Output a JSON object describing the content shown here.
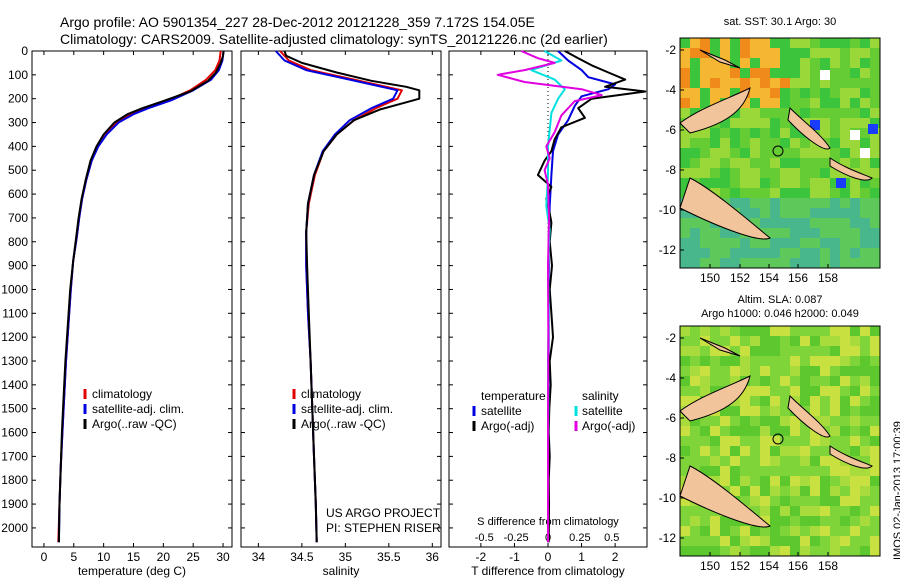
{
  "header": {
    "line1": "Argo profile: AO 5901354_227 28-Dec-2012 20121228_359 7.172S 154.05E",
    "line2": "Climatology: CARS2009. Satellite-adjusted climatology: synTS_20121226.nc (2d earlier)"
  },
  "credit": "IMOS 02-Jan-2013 17:00:39",
  "colors": {
    "climatology": "#e00000",
    "satellite": "#0000e0",
    "argo": "#000000",
    "salinity_sat": "#00e0e0",
    "salinity_argo": "#e000e0"
  },
  "chart_data": [
    {
      "type": "line",
      "xlabel": "temperature (deg C)",
      "ylim": [
        2080,
        0
      ],
      "xlim": [
        -2,
        31.5
      ],
      "xticks": [
        0,
        5,
        10,
        15,
        20,
        25,
        30
      ],
      "yticks": [
        0,
        100,
        200,
        300,
        400,
        500,
        600,
        700,
        800,
        900,
        1000,
        1100,
        1200,
        1300,
        1400,
        1500,
        1600,
        1700,
        1800,
        1900,
        2000
      ],
      "legend": [
        "climatology",
        "satellite-adj. clim.",
        "Argo(..raw -QC)"
      ],
      "series": [
        {
          "name": "climatology",
          "color": "#e00000",
          "points": [
            [
              29.6,
              0
            ],
            [
              29.4,
              40
            ],
            [
              28.7,
              80
            ],
            [
              27.2,
              120
            ],
            [
              24.5,
              165
            ],
            [
              21,
              205
            ],
            [
              17,
              240
            ],
            [
              14.5,
              265
            ],
            [
              12.2,
              300
            ],
            [
              10.4,
              350
            ],
            [
              9,
              400
            ],
            [
              8,
              460
            ],
            [
              7.1,
              540
            ],
            [
              6.4,
              620
            ],
            [
              5.9,
              700
            ],
            [
              5.5,
              780
            ],
            [
              4.9,
              880
            ],
            [
              4.5,
              1000
            ],
            [
              4.1,
              1150
            ],
            [
              3.7,
              1300
            ],
            [
              3.4,
              1450
            ],
            [
              3.1,
              1600
            ],
            [
              2.8,
              1750
            ],
            [
              2.6,
              1900
            ],
            [
              2.4,
              2060
            ]
          ]
        },
        {
          "name": "satellite-adj. clim.",
          "color": "#0000e0",
          "points": [
            [
              30.1,
              0
            ],
            [
              29.9,
              40
            ],
            [
              29.3,
              80
            ],
            [
              28,
              120
            ],
            [
              25,
              165
            ],
            [
              21.5,
              205
            ],
            [
              17.5,
              240
            ],
            [
              15,
              265
            ],
            [
              12.5,
              300
            ],
            [
              10.5,
              350
            ],
            [
              9.1,
              400
            ],
            [
              8,
              460
            ],
            [
              7.1,
              540
            ],
            [
              6.4,
              620
            ],
            [
              5.9,
              700
            ],
            [
              5.5,
              780
            ],
            [
              4.9,
              880
            ],
            [
              4.5,
              1000
            ],
            [
              4.1,
              1150
            ],
            [
              3.7,
              1300
            ],
            [
              3.4,
              1450
            ],
            [
              3.1,
              1600
            ],
            [
              2.8,
              1750
            ],
            [
              2.6,
              1900
            ],
            [
              2.5,
              2060
            ]
          ]
        },
        {
          "name": "Argo(..raw -QC)",
          "color": "#000000",
          "points": [
            [
              30.1,
              0
            ],
            [
              30,
              20
            ],
            [
              29.6,
              50
            ],
            [
              28.8,
              90
            ],
            [
              27.5,
              125
            ],
            [
              24.5,
              170
            ],
            [
              20,
              210
            ],
            [
              16.5,
              240
            ],
            [
              14,
              265
            ],
            [
              11.8,
              300
            ],
            [
              10,
              350
            ],
            [
              8.8,
              400
            ],
            [
              7.8,
              460
            ],
            [
              7,
              540
            ],
            [
              6.3,
              620
            ],
            [
              5.8,
              700
            ],
            [
              5.4,
              780
            ],
            [
              4.9,
              880
            ],
            [
              4.4,
              1000
            ],
            [
              4,
              1150
            ],
            [
              3.6,
              1300
            ],
            [
              3.3,
              1450
            ],
            [
              3,
              1600
            ],
            [
              2.8,
              1750
            ],
            [
              2.6,
              1900
            ],
            [
              2.5,
              2060
            ]
          ]
        }
      ]
    },
    {
      "type": "line",
      "xlabel": "salinity",
      "ylim": [
        2080,
        0
      ],
      "xlim": [
        33.8,
        36.1
      ],
      "xticks": [
        34,
        34.5,
        35,
        35.5,
        36
      ],
      "legend": [
        "climatology",
        "satellite-adj. clim.",
        "Argo(..raw -QC)"
      ],
      "annotation": [
        "US ARGO PROJECT",
        "PI: STEPHEN RISER"
      ],
      "series": [
        {
          "name": "climatology",
          "color": "#e00000",
          "points": [
            [
              34.25,
              0
            ],
            [
              34.35,
              40
            ],
            [
              34.6,
              80
            ],
            [
              35.1,
              120
            ],
            [
              35.65,
              165
            ],
            [
              35.6,
              200
            ],
            [
              35.35,
              240
            ],
            [
              35.1,
              290
            ],
            [
              34.9,
              350
            ],
            [
              34.75,
              420
            ],
            [
              34.65,
              520
            ],
            [
              34.58,
              640
            ],
            [
              34.55,
              760
            ],
            [
              34.55,
              900
            ],
            [
              34.57,
              1100
            ],
            [
              34.6,
              1300
            ],
            [
              34.62,
              1500
            ],
            [
              34.64,
              1700
            ],
            [
              34.66,
              1900
            ],
            [
              34.67,
              2060
            ]
          ]
        },
        {
          "name": "satellite-adj. clim.",
          "color": "#0000e0",
          "points": [
            [
              34.2,
              0
            ],
            [
              34.3,
              40
            ],
            [
              34.55,
              80
            ],
            [
              35.05,
              120
            ],
            [
              35.6,
              165
            ],
            [
              35.55,
              200
            ],
            [
              35.3,
              240
            ],
            [
              35.05,
              290
            ],
            [
              34.88,
              350
            ],
            [
              34.74,
              420
            ],
            [
              34.64,
              520
            ],
            [
              34.57,
              640
            ],
            [
              34.55,
              760
            ],
            [
              34.55,
              900
            ],
            [
              34.57,
              1100
            ],
            [
              34.6,
              1300
            ],
            [
              34.62,
              1500
            ],
            [
              34.64,
              1700
            ],
            [
              34.66,
              1900
            ],
            [
              34.67,
              2060
            ]
          ]
        },
        {
          "name": "Argo(..raw -QC)",
          "color": "#000000",
          "points": [
            [
              34.3,
              0
            ],
            [
              34.32,
              20
            ],
            [
              34.5,
              50
            ],
            [
              34.9,
              90
            ],
            [
              35.3,
              125
            ],
            [
              35.7,
              150
            ],
            [
              35.85,
              165
            ],
            [
              35.85,
              200
            ],
            [
              35.7,
              215
            ],
            [
              35.4,
              245
            ],
            [
              35.1,
              290
            ],
            [
              34.9,
              350
            ],
            [
              34.75,
              420
            ],
            [
              34.64,
              520
            ],
            [
              34.57,
              640
            ],
            [
              34.55,
              760
            ],
            [
              34.56,
              900
            ],
            [
              34.58,
              1100
            ],
            [
              34.6,
              1300
            ],
            [
              34.62,
              1500
            ],
            [
              34.64,
              1700
            ],
            [
              34.66,
              1900
            ],
            [
              34.67,
              2060
            ]
          ]
        }
      ]
    },
    {
      "type": "line",
      "xlabel": "T difference from climatology",
      "top_label": "S difference from climatology",
      "ylim": [
        2080,
        0
      ],
      "xlim": [
        -2.95,
        2.95
      ],
      "xticks": [
        -2,
        -1,
        0,
        1,
        2
      ],
      "top_ticks": [
        "-0.5",
        "-0.25",
        "0",
        "0.25",
        "0.5"
      ],
      "legend_temperature": [
        "temperature",
        "satellite",
        "Argo(-adj)"
      ],
      "legend_salinity": [
        "salinity",
        "satellite",
        "Argo(-adj)"
      ],
      "series": [
        {
          "name": "T satellite",
          "color": "#0000e0",
          "points": [
            [
              0.3,
              0
            ],
            [
              0.6,
              40
            ],
            [
              1,
              80
            ],
            [
              1.2,
              110
            ],
            [
              2,
              140
            ],
            [
              1.8,
              160
            ],
            [
              1,
              190
            ],
            [
              0.8,
              230
            ],
            [
              0.6,
              290
            ],
            [
              0.3,
              350
            ],
            [
              0.15,
              420
            ],
            [
              0.1,
              520
            ],
            [
              0.05,
              650
            ],
            [
              0.02,
              800
            ],
            [
              0.02,
              1000
            ],
            [
              0.02,
              1200
            ],
            [
              0.01,
              1500
            ],
            [
              0.01,
              1800
            ],
            [
              0.01,
              2060
            ]
          ]
        },
        {
          "name": "T Argo(-adj)",
          "color": "#000000",
          "points": [
            [
              0.5,
              0
            ],
            [
              0.9,
              30
            ],
            [
              1.3,
              60
            ],
            [
              1.8,
              90
            ],
            [
              2.3,
              120
            ],
            [
              1.7,
              150
            ],
            [
              2.9,
              170
            ],
            [
              2.1,
              185
            ],
            [
              1.3,
              200
            ],
            [
              0.9,
              240
            ],
            [
              1.1,
              280
            ],
            [
              0.4,
              320
            ],
            [
              0.2,
              370
            ],
            [
              0.1,
              420
            ],
            [
              -0.1,
              460
            ],
            [
              -0.3,
              520
            ],
            [
              0.1,
              570
            ],
            [
              -0.05,
              620
            ],
            [
              0.05,
              680
            ],
            [
              0.1,
              720
            ],
            [
              0.05,
              800
            ],
            [
              0.12,
              900
            ],
            [
              0.05,
              1000
            ],
            [
              0.1,
              1100
            ],
            [
              0.15,
              1200
            ],
            [
              0.05,
              1300
            ],
            [
              0.08,
              1400
            ],
            [
              0.04,
              1500
            ],
            [
              0.02,
              1600
            ],
            [
              0.05,
              1700
            ],
            [
              0.02,
              1800
            ],
            [
              0.03,
              1900
            ],
            [
              0.02,
              2060
            ]
          ]
        },
        {
          "name": "S satellite",
          "color": "#00e0e0",
          "points": [
            [
              -0.1,
              0
            ],
            [
              0.4,
              40
            ],
            [
              -0.5,
              80
            ],
            [
              0.2,
              120
            ],
            [
              0.5,
              160
            ],
            [
              0.3,
              200
            ],
            [
              0.1,
              260
            ],
            [
              0.05,
              330
            ],
            [
              0,
              400
            ],
            [
              0,
              520
            ],
            [
              -0.05,
              650
            ],
            [
              0.05,
              750
            ],
            [
              0,
              900
            ],
            [
              0.02,
              1100
            ],
            [
              0,
              1300
            ],
            [
              0.01,
              1500
            ],
            [
              0,
              1700
            ],
            [
              0,
              1900
            ],
            [
              0,
              2060
            ]
          ]
        },
        {
          "name": "S Argo(-adj)",
          "color": "#e000e0",
          "points": [
            [
              -0.8,
              0
            ],
            [
              -0.3,
              30
            ],
            [
              0.2,
              50
            ],
            [
              -0.7,
              80
            ],
            [
              -1.5,
              100
            ],
            [
              -0.7,
              130
            ],
            [
              1,
              160
            ],
            [
              1.6,
              185
            ],
            [
              0.8,
              210
            ],
            [
              0.4,
              270
            ],
            [
              0.2,
              340
            ],
            [
              -0.05,
              400
            ],
            [
              0.05,
              450
            ],
            [
              -0.1,
              500
            ],
            [
              0,
              560
            ],
            [
              0.03,
              700
            ],
            [
              0,
              900
            ],
            [
              0.01,
              1200
            ],
            [
              0,
              1500
            ],
            [
              0,
              1800
            ],
            [
              0,
              2060
            ]
          ]
        }
      ]
    }
  ],
  "maps": [
    {
      "title": "sat. SST: 30.1  Argo: 30",
      "xticks": [
        "150",
        "152",
        "154",
        "156",
        "158"
      ],
      "yticks": [
        "-2",
        "-4",
        "-6",
        "-8",
        "-10",
        "-12"
      ]
    },
    {
      "title_line1": "Altim. SLA: 0.087",
      "title_line2": "Argo h1000: 0.046 h2000: 0.049",
      "xticks": [
        "150",
        "152",
        "154",
        "156",
        "158"
      ],
      "yticks": [
        "-2",
        "-4",
        "-6",
        "-8",
        "-10",
        "-12"
      ]
    }
  ]
}
